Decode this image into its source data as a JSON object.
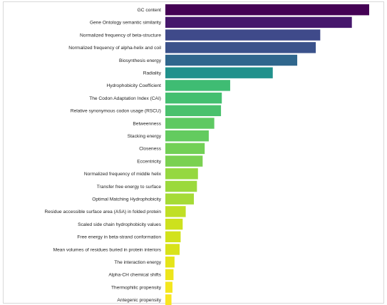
{
  "chart_data": {
    "type": "bar",
    "orientation": "horizontal",
    "title": "",
    "xlabel": "",
    "ylabel": "",
    "xlim": [
      0,
      1
    ],
    "grid": false,
    "legend": "none",
    "categories": [
      "GC content",
      "Gene Ontology semantic similarity",
      "Normalized frequency of beta-structure",
      "Normalized frequency of alpha-helix and coil",
      "Biosynthesis energy",
      "Radiality",
      "Hydrophobicity Coefficient",
      "The Codon Adaptation Index (CAI)",
      "Relative synonymous codon usage (RSCU)",
      "Betweenness",
      "Stacking energy",
      "Closeness",
      "Eccentricity",
      "Normalized frequency of middle helix",
      "Transfer free energy to surface",
      "Optimal Matching Hydrophobicity",
      "Residue accessible surface area (ASA) in folded protein",
      "Scaled side chain hydrophobicity values",
      "Free energy in beta-strand conformation",
      "Mean volumes of residues buried in protein interiors",
      "The interaction energy",
      "Alpha-CH chemical shifts",
      "Thermophilic propensity",
      "Antegenic propensity"
    ],
    "values": [
      1.0,
      0.915,
      0.76,
      0.738,
      0.647,
      0.527,
      0.318,
      0.277,
      0.273,
      0.24,
      0.213,
      0.193,
      0.183,
      0.16,
      0.155,
      0.14,
      0.1,
      0.085,
      0.075,
      0.07,
      0.045,
      0.04,
      0.035,
      0.03
    ],
    "colors": [
      "#440154",
      "#46176c",
      "#3f4a8a",
      "#3b528b",
      "#30678d",
      "#21918c",
      "#3fbc73",
      "#44bf70",
      "#4ac16d",
      "#5ec962",
      "#63cb5f",
      "#72d056",
      "#7ad151",
      "#95d840",
      "#9bd93c",
      "#a5db36",
      "#c0df25",
      "#cde11d",
      "#d2e21b",
      "#d8e219",
      "#e5e419",
      "#ede51b",
      "#f4e61e",
      "#f8e621"
    ]
  }
}
